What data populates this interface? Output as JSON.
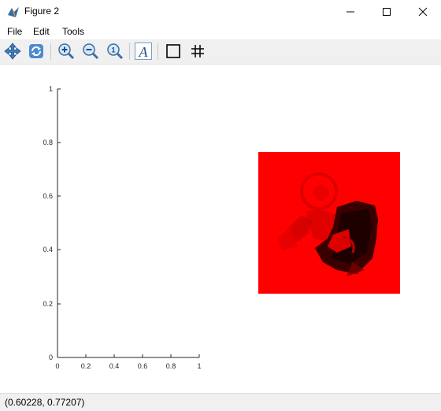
{
  "window": {
    "title": "Figure 2",
    "icon": "matlab-figure-icon"
  },
  "menu": {
    "items": [
      {
        "label": "File"
      },
      {
        "label": "Edit"
      },
      {
        "label": "Tools"
      }
    ]
  },
  "toolbar": {
    "tools": [
      {
        "name": "pan-icon"
      },
      {
        "name": "rotate-icon"
      },
      {
        "name": "zoom-in-icon"
      },
      {
        "name": "zoom-out-icon"
      },
      {
        "name": "zoom-reset-icon"
      },
      {
        "name": "insert-text-icon"
      },
      {
        "name": "box-toggle-icon"
      },
      {
        "name": "grid-toggle-icon"
      }
    ]
  },
  "axes": {
    "x_ticks": [
      "0",
      "0.2",
      "0.4",
      "0.6",
      "0.8",
      "1"
    ],
    "y_ticks": [
      "0",
      "0.2",
      "0.4",
      "0.6",
      "0.8",
      "1"
    ]
  },
  "image": {
    "description_colors": {
      "background": "#ff0000",
      "dark": "#330000"
    }
  },
  "status": {
    "coordinates": "(0.60228, 0.77207)"
  }
}
